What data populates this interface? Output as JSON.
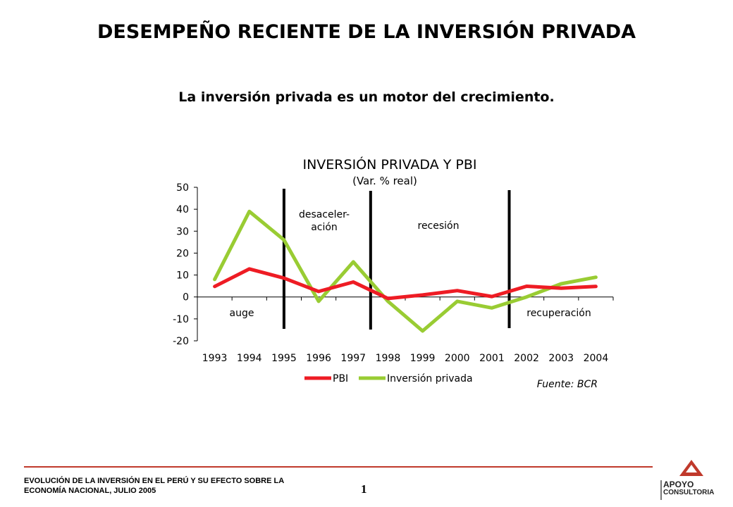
{
  "slide": {
    "title": "DESEMPEÑO RECIENTE DE LA INVERSIÓN PRIVADA",
    "subtitle": "La inversión privada es un motor del crecimiento."
  },
  "chart_data": {
    "type": "line",
    "title": "INVERSIÓN PRIVADA Y PBI",
    "subtitle": "(Var. % real)",
    "categories": [
      "1993",
      "1994",
      "1995",
      "1996",
      "1997",
      "1998",
      "1999",
      "2000",
      "2001",
      "2002",
      "2003",
      "2004"
    ],
    "series": [
      {
        "name": "PBI",
        "color": "#ee1c24",
        "values": [
          4.8,
          12.8,
          8.6,
          2.5,
          6.8,
          -0.7,
          0.9,
          2.9,
          0.2,
          4.9,
          4.0,
          4.8
        ]
      },
      {
        "name": "Inversión privada",
        "color": "#99cc33",
        "values": [
          8.0,
          39.0,
          26.0,
          -2.0,
          16.0,
          -2.0,
          -15.5,
          -2.0,
          -5.0,
          0.0,
          6.0,
          9.0
        ]
      }
    ],
    "ylim": [
      -20,
      50
    ],
    "yticks": [
      50,
      40,
      30,
      20,
      10,
      0,
      -10,
      -20
    ],
    "ytick_labels": [
      "50",
      "40",
      "30",
      "20",
      "10",
      "0",
      "-10",
      "-20"
    ],
    "dividers": [
      1995,
      1997.5,
      2001.5
    ],
    "annotations": [
      {
        "text": "auge"
      },
      {
        "text": "desaceler-\nación"
      },
      {
        "text": "recesión"
      },
      {
        "text": "recuperación"
      }
    ],
    "legend_placement": "bottom",
    "source": "Fuente: BCR"
  },
  "footer": {
    "line1": "EVOLUCIÓN DE LA INVERSIÓN EN EL PERÚ Y SU EFECTO SOBRE LA",
    "line2": "ECONOMÍA NACIONAL, JULIO 2005",
    "page_number": "1"
  },
  "logo": {
    "line1": "APOYO",
    "line2": "CONSULTORIA",
    "accent": "#c0392b"
  }
}
